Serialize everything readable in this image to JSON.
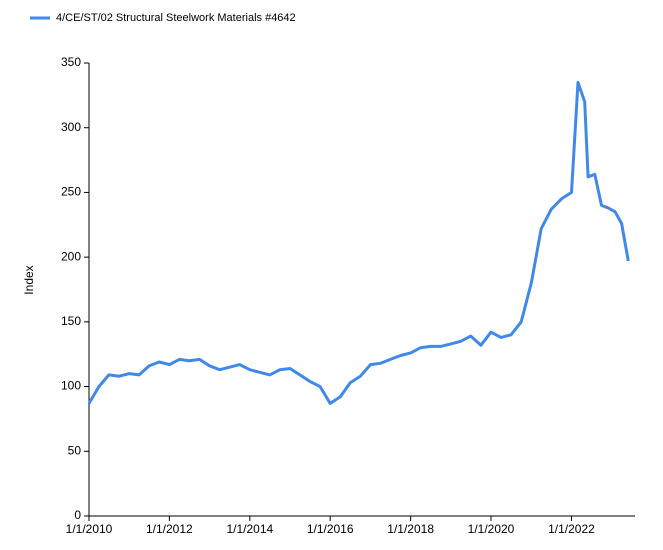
{
  "chart_data": {
    "type": "line",
    "ylabel": "Index",
    "x": [
      "1/1/2010",
      "4/1/2010",
      "7/1/2010",
      "10/1/2010",
      "1/1/2011",
      "4/1/2011",
      "7/1/2011",
      "10/1/2011",
      "1/1/2012",
      "4/1/2012",
      "7/1/2012",
      "10/1/2012",
      "1/1/2013",
      "4/1/2013",
      "7/1/2013",
      "10/1/2013",
      "1/1/2014",
      "4/1/2014",
      "7/1/2014",
      "10/1/2014",
      "1/1/2015",
      "4/1/2015",
      "7/1/2015",
      "10/1/2015",
      "1/1/2016",
      "4/1/2016",
      "7/1/2016",
      "10/1/2016",
      "1/1/2017",
      "4/1/2017",
      "7/1/2017",
      "10/1/2017",
      "1/1/2018",
      "4/1/2018",
      "7/1/2018",
      "10/1/2018",
      "1/1/2019",
      "4/1/2019",
      "7/1/2019",
      "10/1/2019",
      "1/1/2020",
      "4/1/2020",
      "7/1/2020",
      "10/1/2020",
      "1/1/2021",
      "4/1/2021",
      "7/1/2021",
      "10/1/2021",
      "1/1/2022",
      "3/1/2022",
      "5/1/2022",
      "6/1/2022",
      "8/1/2022",
      "10/1/2022",
      "12/1/2022",
      "2/1/2023",
      "4/1/2023",
      "6/1/2023"
    ],
    "series": [
      {
        "name": "4/CE/ST/02 Structural Steelwork Materials #4642",
        "color": "#4189e8",
        "values": [
          87,
          100,
          109,
          108,
          110,
          109,
          116,
          119,
          117,
          121,
          120,
          121,
          116,
          113,
          115,
          117,
          113,
          111,
          109,
          113,
          114,
          109,
          104,
          100,
          87,
          92,
          103,
          108,
          117,
          118,
          121,
          124,
          126,
          130,
          131,
          131,
          133,
          135,
          139,
          132,
          142,
          138,
          140,
          150,
          180,
          222,
          237,
          245,
          250,
          335,
          320,
          262,
          264,
          240,
          238,
          235,
          226,
          197
        ]
      }
    ],
    "xlim": [
      "1/1/2010",
      "8/1/2023"
    ],
    "xticks": [
      "1/1/2010",
      "1/1/2012",
      "1/1/2014",
      "1/1/2016",
      "1/1/2018",
      "1/1/2020",
      "1/1/2022"
    ],
    "ylim": [
      0,
      350
    ],
    "yticks": [
      0,
      50,
      100,
      150,
      200,
      250,
      300,
      350
    ],
    "grid": false,
    "legend": "top-left"
  }
}
